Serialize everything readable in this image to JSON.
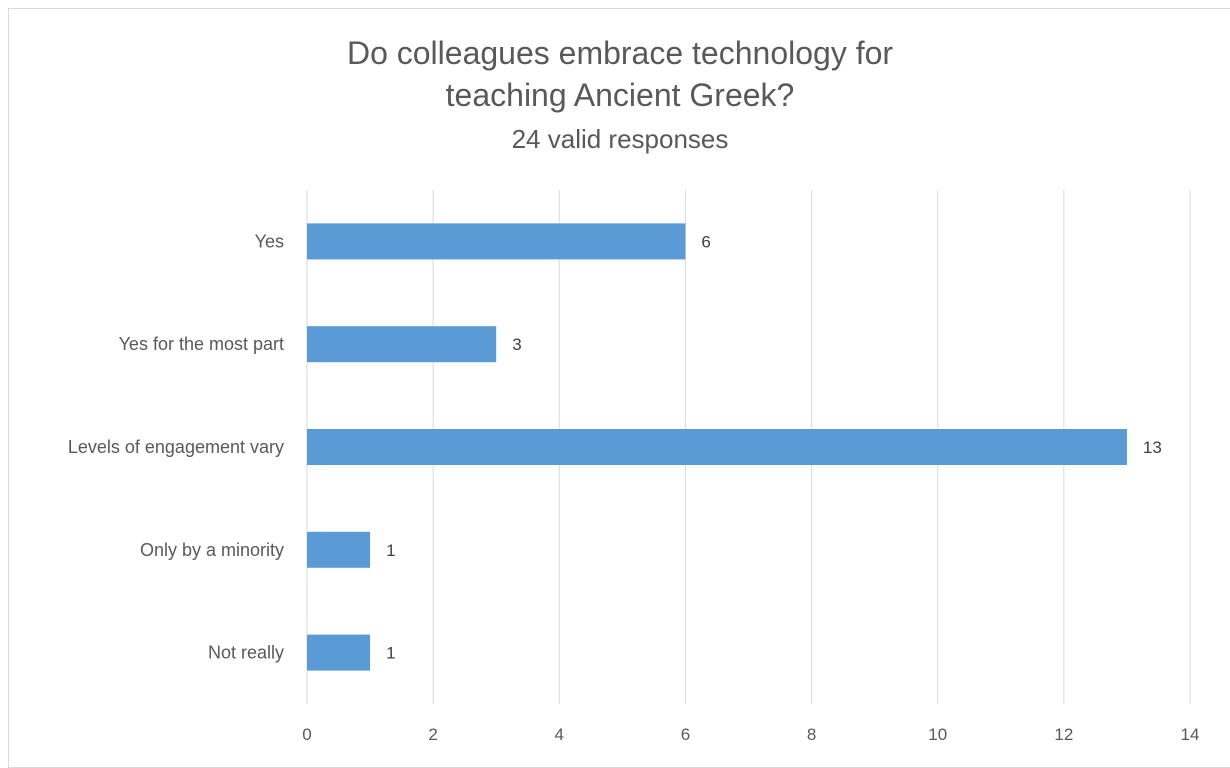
{
  "chart_data": {
    "type": "bar",
    "orientation": "horizontal",
    "title": "Do colleagues embrace technology for teaching Ancient Greek?",
    "title_lines": [
      "Do colleagues embrace technology for",
      "teaching Ancient Greek?"
    ],
    "subtitle": "24 valid responses",
    "categories": [
      "Yes",
      "Yes for the most part",
      "Levels of engagement vary",
      "Only by a minority",
      "Not really"
    ],
    "values": [
      6,
      3,
      13,
      1,
      1
    ],
    "data_labels": [
      "6",
      "3",
      "13",
      "1",
      "1"
    ],
    "xlim": [
      0,
      14
    ],
    "x_ticks": [
      0,
      2,
      4,
      6,
      8,
      10,
      12,
      14
    ],
    "x_tick_labels": [
      "0",
      "2",
      "4",
      "6",
      "8",
      "10",
      "12",
      "14"
    ],
    "xlabel": "",
    "ylabel": "",
    "grid": true,
    "legend": "none",
    "bar_color": "#5b9bd5",
    "grid_color": "#d9d9d9"
  }
}
